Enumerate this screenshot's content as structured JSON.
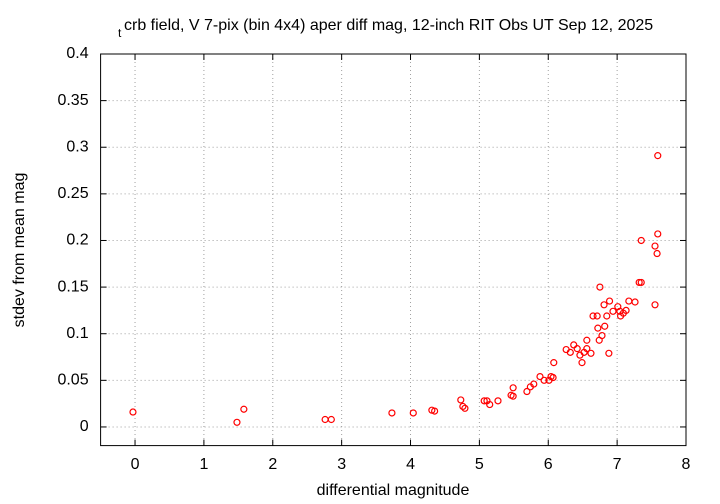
{
  "chart_data": {
    "type": "scatter",
    "title_subscript": "t",
    "title": "crb field, V 7-pix (bin 4x4) aper diff mag,  12-inch RIT Obs UT Sep 12, 2025",
    "x_label": "differential magnitude",
    "y_label": "stdev from mean mag",
    "color": "#ff0000",
    "grid": true,
    "xlim": [
      -0.5,
      8
    ],
    "xticks": [
      0,
      1,
      2,
      3,
      4,
      5,
      6,
      7,
      8
    ],
    "ylim": [
      -0.02,
      0.4
    ],
    "yticks": [
      0,
      0.05,
      0.1,
      0.15,
      0.2,
      0.25,
      0.3,
      0.35,
      0.4
    ],
    "x": [
      -0.03,
      1.48,
      1.58,
      2.76,
      2.85,
      3.73,
      4.04,
      4.31,
      4.35,
      4.73,
      4.76,
      4.79,
      5.07,
      5.11,
      5.15,
      5.27,
      5.46,
      5.49,
      5.49,
      5.69,
      5.74,
      5.79,
      5.88,
      5.94,
      6.01,
      6.04,
      6.07,
      6.08,
      6.26,
      6.32,
      6.37,
      6.42,
      6.46,
      6.49,
      6.52,
      6.56,
      6.56,
      6.62,
      6.65,
      6.71,
      6.72,
      6.74,
      6.75,
      6.78,
      6.82,
      6.81,
      6.85,
      6.88,
      6.89,
      6.94,
      7.01,
      7.04,
      7.05,
      7.09,
      7.13,
      7.17,
      7.26,
      7.32,
      7.35,
      7.35,
      7.55,
      7.55,
      7.58,
      7.59,
      7.59
    ],
    "values": [
      0.016,
      0.005,
      0.019,
      0.008,
      0.008,
      0.015,
      0.015,
      0.018,
      0.017,
      0.029,
      0.022,
      0.02,
      0.028,
      0.028,
      0.024,
      0.028,
      0.034,
      0.033,
      0.042,
      0.038,
      0.043,
      0.046,
      0.054,
      0.05,
      0.05,
      0.054,
      0.053,
      0.069,
      0.083,
      0.08,
      0.088,
      0.084,
      0.077,
      0.069,
      0.08,
      0.084,
      0.093,
      0.079,
      0.119,
      0.119,
      0.106,
      0.093,
      0.15,
      0.098,
      0.108,
      0.131,
      0.119,
      0.079,
      0.135,
      0.124,
      0.129,
      0.124,
      0.119,
      0.122,
      0.125,
      0.135,
      0.134,
      0.155,
      0.155,
      0.2,
      0.131,
      0.194,
      0.186,
      0.207,
      0.291
    ]
  }
}
